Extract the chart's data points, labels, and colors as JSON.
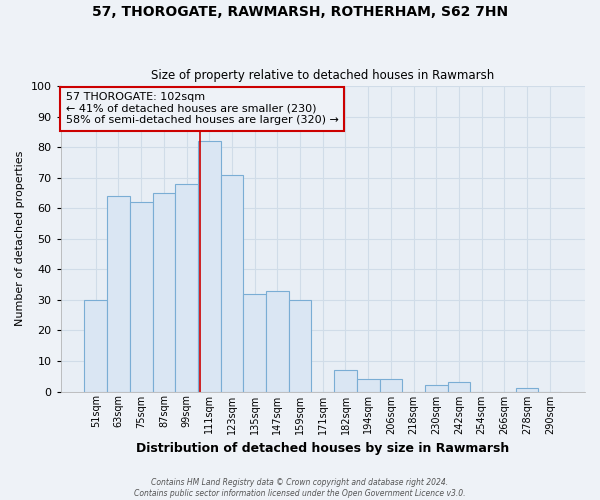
{
  "title": "57, THOROGATE, RAWMARSH, ROTHERHAM, S62 7HN",
  "subtitle": "Size of property relative to detached houses in Rawmarsh",
  "xlabel": "Distribution of detached houses by size in Rawmarsh",
  "ylabel": "Number of detached properties",
  "bar_color": "#dae6f3",
  "bar_edge_color": "#7aadd4",
  "bin_labels": [
    "51sqm",
    "63sqm",
    "75sqm",
    "87sqm",
    "99sqm",
    "111sqm",
    "123sqm",
    "135sqm",
    "147sqm",
    "159sqm",
    "171sqm",
    "182sqm",
    "194sqm",
    "206sqm",
    "218sqm",
    "230sqm",
    "242sqm",
    "254sqm",
    "266sqm",
    "278sqm",
    "290sqm"
  ],
  "bar_heights": [
    30,
    64,
    62,
    65,
    68,
    82,
    71,
    32,
    33,
    30,
    0,
    7,
    4,
    4,
    0,
    2,
    3,
    0,
    0,
    1,
    0
  ],
  "vline_x": 4.58,
  "vline_color": "#cc0000",
  "annotation_title": "57 THOROGATE: 102sqm",
  "annotation_line1": "← 41% of detached houses are smaller (230)",
  "annotation_line2": "58% of semi-detached houses are larger (320) →",
  "annotation_box_color": "#cc0000",
  "ylim": [
    0,
    100
  ],
  "yticks": [
    0,
    10,
    20,
    30,
    40,
    50,
    60,
    70,
    80,
    90,
    100
  ],
  "footer1": "Contains HM Land Registry data © Crown copyright and database right 2024.",
  "footer2": "Contains public sector information licensed under the Open Government Licence v3.0.",
  "background_color": "#eef2f7",
  "grid_color": "#d0dce8",
  "plot_bg_color": "#e8eef5"
}
